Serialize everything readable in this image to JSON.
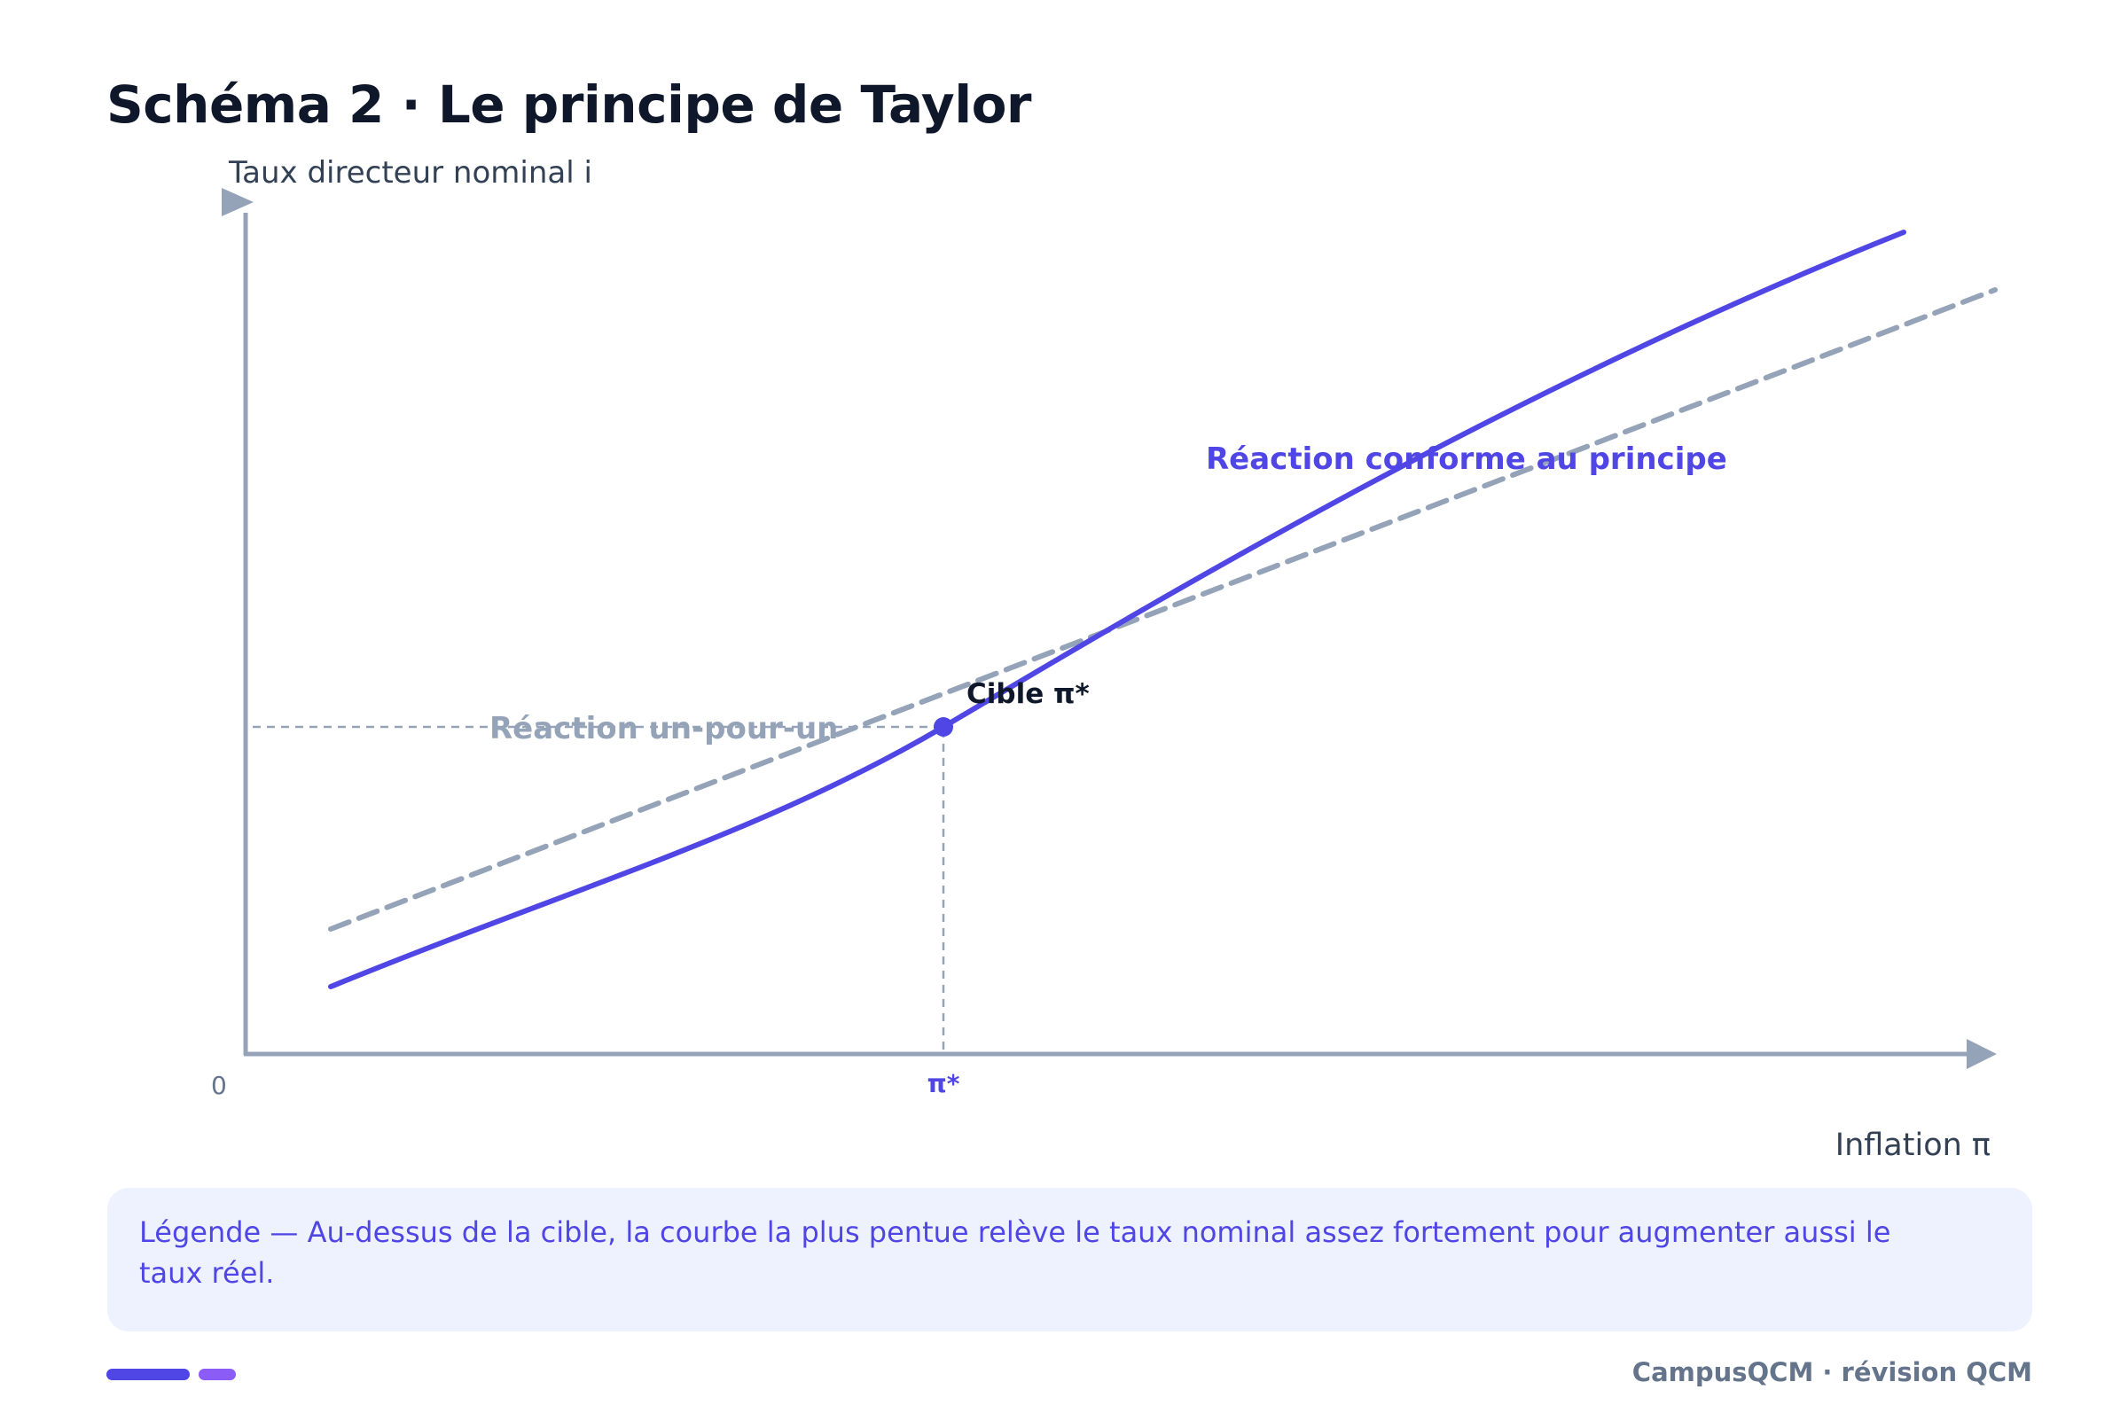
{
  "title": "Schéma 2 · Le principe de Taylor",
  "axes": {
    "y_label": "Taux directeur nominal i",
    "x_label": "Inflation π",
    "origin_label": "0",
    "target_tick_label": "π*"
  },
  "annotations": {
    "target_point": "Cible π*",
    "principle_curve": "Réaction conforme au principe",
    "one_to_one_line": "Réaction un-pour-un"
  },
  "legend": {
    "text": "Légende — Au-dessus de la cible, la courbe la plus pentue relève le taux nominal assez fortement pour augmenter aussi le taux réel."
  },
  "footer": {
    "brand": "CampusQCM · révision QCM"
  },
  "colors": {
    "principle_curve": "#4f46e5",
    "one_to_one_line": "#94a3b8",
    "axis": "#94a3b8",
    "target_point": "#4f46e5",
    "legend_background": "#eef2ff"
  }
}
